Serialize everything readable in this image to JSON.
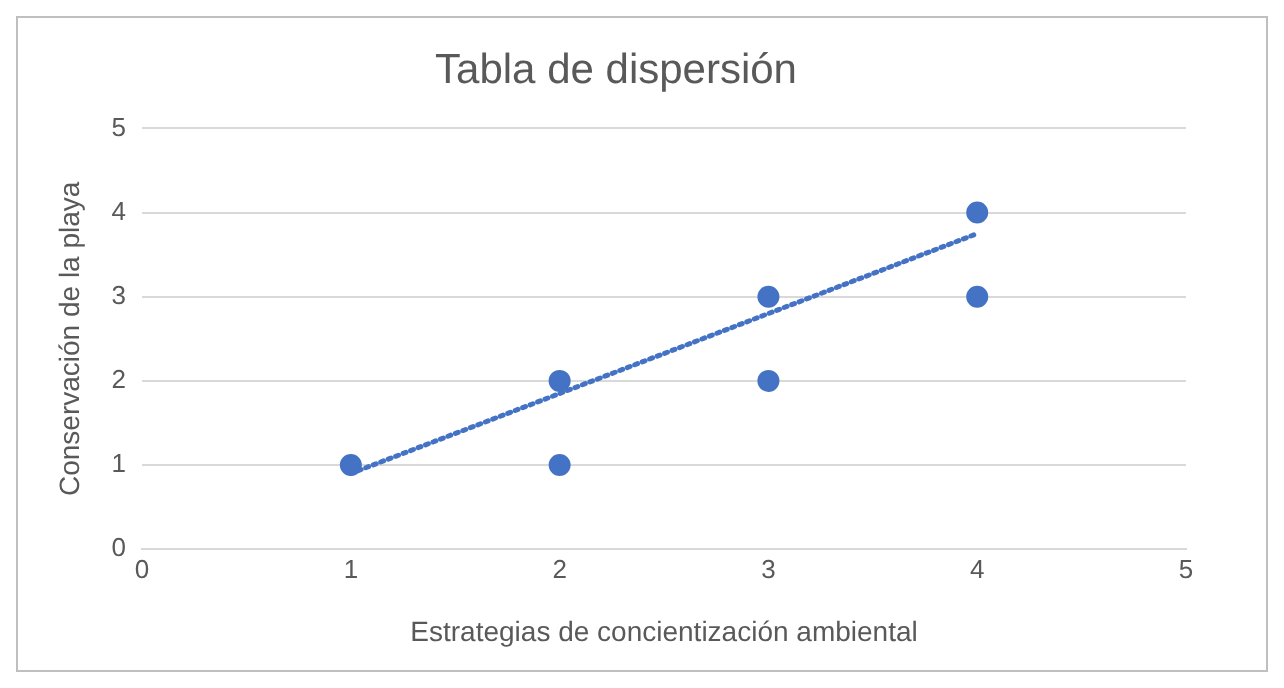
{
  "chart_data": {
    "type": "scatter",
    "title": "Tabla de dispersión",
    "xlabel": "Estrategias de concientización ambiental",
    "ylabel": "Conservación de la playa",
    "series": [
      {
        "color": "#4472c4",
        "x": [
          1,
          2,
          2,
          3,
          3,
          4,
          4
        ],
        "values": [
          1,
          2,
          1,
          3,
          2,
          4,
          3
        ],
        "marker": "circle"
      },
      {
        "type": "line",
        "color": "#4472c4",
        "x": [
          1,
          4
        ],
        "values": [
          0.9,
          3.75
        ],
        "line_style": "dotted",
        "marker": "none"
      }
    ],
    "xlim": [
      0,
      5
    ],
    "xticks": [
      0,
      1,
      2,
      3,
      4,
      5
    ],
    "ylim": [
      0,
      5
    ],
    "yticks": [
      0,
      1,
      2,
      3,
      4,
      5
    ],
    "grid": "y",
    "legend": false
  }
}
